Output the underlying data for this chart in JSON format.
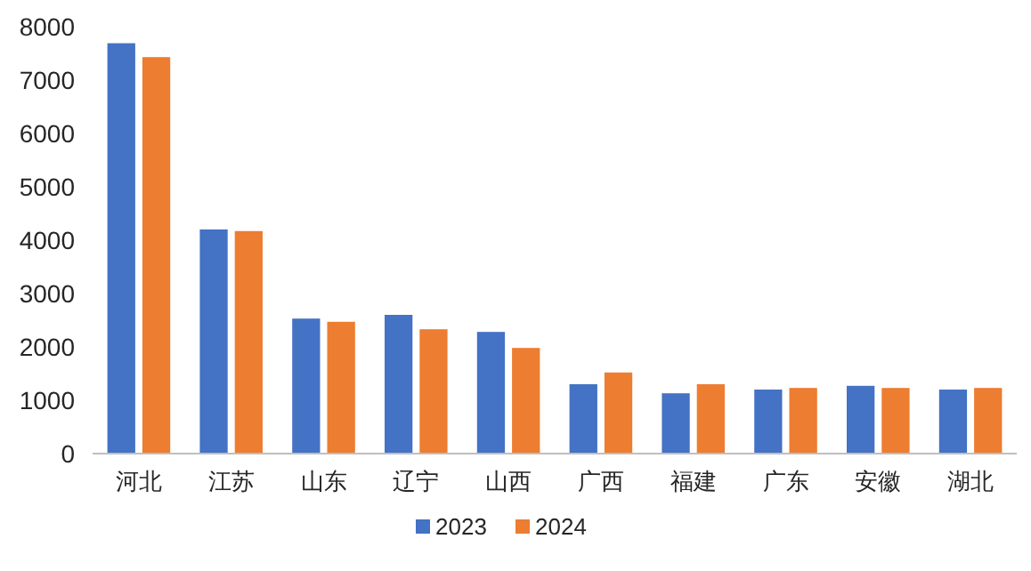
{
  "chart_data": {
    "type": "bar",
    "categories": [
      "河北",
      "江苏",
      "山东",
      "辽宁",
      "山西",
      "广西",
      "福建",
      "广东",
      "安徽",
      "湖北"
    ],
    "series": [
      {
        "name": "2023",
        "color": "#4472c4",
        "values": [
          7690,
          4200,
          2530,
          2600,
          2280,
          1300,
          1130,
          1200,
          1270,
          1200
        ]
      },
      {
        "name": "2024",
        "color": "#ed7d31",
        "values": [
          7430,
          4170,
          2470,
          2330,
          1980,
          1520,
          1300,
          1230,
          1230,
          1230
        ]
      }
    ],
    "ylim": [
      0,
      8000
    ],
    "yticks": [
      0,
      1000,
      2000,
      3000,
      4000,
      5000,
      6000,
      7000,
      8000
    ],
    "grid": false,
    "legend": "bottom"
  }
}
